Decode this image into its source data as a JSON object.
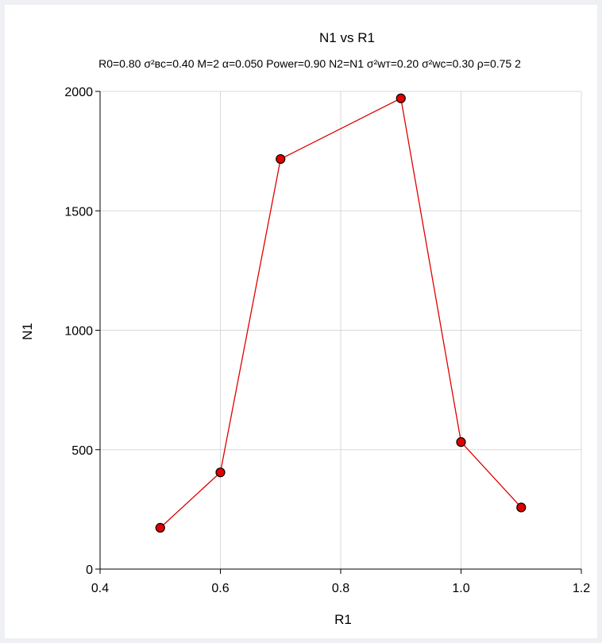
{
  "chart_data": {
    "type": "line",
    "title": "N1 vs R1",
    "subtitle": "R0=0.80 σ²ʙᴄ=0.40 M=2 α=0.050 Power=0.90 N2=N1 σ²wᴛ=0.20 σ²wᴄ=0.30 ρ=0.75 2",
    "xlabel": "R1",
    "ylabel": "N1",
    "xlim": [
      0.4,
      1.2
    ],
    "ylim": [
      0,
      2000
    ],
    "xticks": [
      0.4,
      0.6,
      0.8,
      1.0,
      1.2
    ],
    "xtick_labels": [
      "0.4",
      "0.6",
      "0.8",
      "1.0",
      "1.2"
    ],
    "yticks": [
      0,
      500,
      1000,
      1500,
      2000
    ],
    "ytick_labels": [
      "0",
      "500",
      "1000",
      "1500",
      "2000"
    ],
    "grid": true,
    "legend": "none",
    "series": [
      {
        "x": [
          0.5,
          0.6,
          0.7,
          0.9,
          1.0,
          1.1
        ],
        "y": [
          173,
          405,
          1717,
          1971,
          532,
          258
        ],
        "color": "#e00000",
        "marker": "circle",
        "marker_fill": "#e00000",
        "marker_edge": "#000000"
      }
    ],
    "colors": {
      "grid": "#d9d9d9",
      "axis": "#000000",
      "frame_border": "#eef0f3"
    }
  }
}
